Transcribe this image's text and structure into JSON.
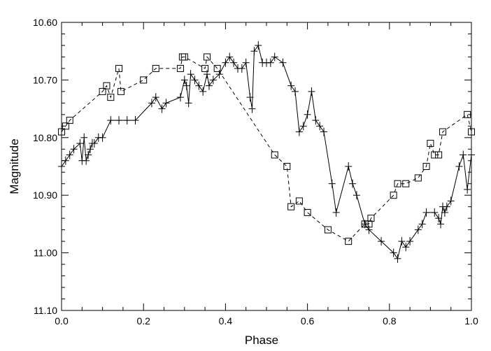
{
  "chart_data": {
    "type": "scatter",
    "xlabel": "Phase",
    "ylabel": "Magnitude",
    "xlim": [
      0.0,
      1.0
    ],
    "ylim": [
      10.6,
      11.1
    ],
    "y_inverted": true,
    "grid": false,
    "x_ticks": [
      "0.0",
      "0.2",
      "0.4",
      "0.6",
      "0.8",
      "1.0"
    ],
    "y_ticks": [
      "10.60",
      "10.70",
      "10.80",
      "10.90",
      "11.00",
      "11.10"
    ],
    "series": [
      {
        "marker": "plus",
        "line": "solid",
        "x": [
          0.0,
          0.01,
          0.02,
          0.03,
          0.045,
          0.05,
          0.055,
          0.06,
          0.065,
          0.07,
          0.075,
          0.08,
          0.09,
          0.1,
          0.12,
          0.14,
          0.16,
          0.18,
          0.22,
          0.23,
          0.245,
          0.255,
          0.29,
          0.3,
          0.305,
          0.31,
          0.315,
          0.325,
          0.335,
          0.345,
          0.355,
          0.36,
          0.37,
          0.385,
          0.4,
          0.41,
          0.42,
          0.43,
          0.44,
          0.45,
          0.46,
          0.465,
          0.47,
          0.48,
          0.49,
          0.5,
          0.51,
          0.52,
          0.54,
          0.56,
          0.57,
          0.58,
          0.59,
          0.6,
          0.61,
          0.62,
          0.63,
          0.64,
          0.66,
          0.67,
          0.7,
          0.71,
          0.72,
          0.74,
          0.75,
          0.78,
          0.81,
          0.82,
          0.83,
          0.84,
          0.85,
          0.87,
          0.88,
          0.89,
          0.91,
          0.92,
          0.925,
          0.93,
          0.935,
          0.94,
          0.95,
          0.97,
          0.98,
          0.99,
          1.0
        ],
        "y": [
          10.85,
          10.84,
          10.83,
          10.82,
          10.81,
          10.84,
          10.8,
          10.84,
          10.83,
          10.82,
          10.81,
          10.81,
          10.8,
          10.8,
          10.77,
          10.77,
          10.77,
          10.77,
          10.74,
          10.73,
          10.75,
          10.74,
          10.73,
          10.7,
          10.71,
          10.74,
          10.69,
          10.7,
          10.71,
          10.72,
          10.69,
          10.71,
          10.7,
          10.69,
          10.67,
          10.66,
          10.67,
          10.68,
          10.68,
          10.67,
          10.73,
          10.75,
          10.65,
          10.64,
          10.67,
          10.67,
          10.67,
          10.66,
          10.67,
          10.71,
          10.72,
          10.79,
          10.78,
          10.76,
          10.72,
          10.77,
          10.78,
          10.79,
          10.88,
          10.93,
          10.85,
          10.88,
          10.9,
          10.95,
          10.96,
          10.98,
          11.0,
          11.01,
          10.98,
          10.99,
          10.98,
          10.96,
          10.95,
          10.93,
          10.93,
          10.94,
          10.95,
          10.92,
          10.93,
          10.92,
          10.91,
          10.85,
          10.83,
          10.89,
          10.83
        ]
      },
      {
        "marker": "square",
        "line": "dashed",
        "x": [
          0.0,
          0.01,
          0.02,
          0.1,
          0.11,
          0.12,
          0.14,
          0.145,
          0.2,
          0.23,
          0.29,
          0.295,
          0.3,
          0.35,
          0.355,
          0.38,
          0.52,
          0.55,
          0.56,
          0.58,
          0.6,
          0.65,
          0.7,
          0.74,
          0.75,
          0.755,
          0.81,
          0.82,
          0.84,
          0.87,
          0.89,
          0.9,
          0.91,
          0.92,
          0.93,
          0.99,
          1.0
        ],
        "y": [
          10.79,
          10.78,
          10.77,
          10.72,
          10.71,
          10.73,
          10.68,
          10.72,
          10.7,
          10.68,
          10.68,
          10.66,
          10.66,
          10.68,
          10.66,
          10.68,
          10.83,
          10.85,
          10.92,
          10.91,
          10.93,
          10.96,
          10.98,
          10.95,
          10.95,
          10.94,
          10.9,
          10.88,
          10.88,
          10.87,
          10.85,
          10.81,
          10.83,
          10.83,
          10.79,
          10.76,
          10.79
        ]
      }
    ]
  }
}
